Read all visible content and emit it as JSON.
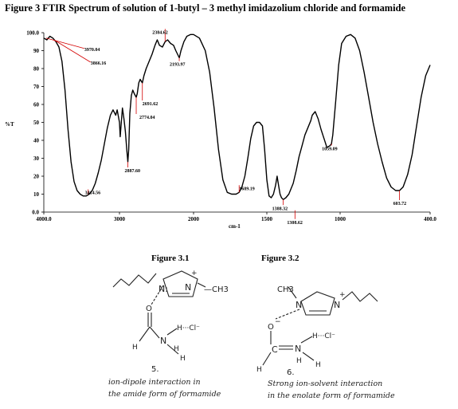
{
  "title": "Figure 3   FTIR Spectrum of solution of   1-butyl – 3 methyl imidazolium chloride and formamide",
  "chart_data": {
    "type": "line",
    "xlabel": "cm-1",
    "ylabel": "%T",
    "x_reversed": true,
    "xlim": [
      4000,
      400
    ],
    "ylim": [
      0,
      100
    ],
    "x_ticks": [
      {
        "value": 4000,
        "label": "4000.0"
      },
      {
        "value": 3000,
        "label": "3000"
      },
      {
        "value": 2000,
        "label": "2000"
      },
      {
        "value": 1500,
        "label": "1500"
      },
      {
        "value": 1000,
        "label": "1000"
      },
      {
        "value": 400,
        "label": "400.0"
      }
    ],
    "y_ticks": [
      {
        "value": 0,
        "label": "0.0"
      },
      {
        "value": 10,
        "label": "10"
      },
      {
        "value": 20,
        "label": "20"
      },
      {
        "value": 30,
        "label": "30"
      },
      {
        "value": 40,
        "label": "40"
      },
      {
        "value": 50,
        "label": "50"
      },
      {
        "value": 60,
        "label": "60"
      },
      {
        "value": 70,
        "label": "70"
      },
      {
        "value": 80,
        "label": "80"
      },
      {
        "value": 90,
        "label": "90"
      },
      {
        "value": 100,
        "label": "100.0"
      }
    ],
    "series": [
      {
        "color": "#000000",
        "points": [
          [
            4000,
            97
          ],
          [
            3960,
            96
          ],
          [
            3920,
            98
          ],
          [
            3880,
            97
          ],
          [
            3840,
            95
          ],
          [
            3800,
            92
          ],
          [
            3760,
            84
          ],
          [
            3720,
            68
          ],
          [
            3680,
            46
          ],
          [
            3640,
            28
          ],
          [
            3600,
            17
          ],
          [
            3560,
            12
          ],
          [
            3520,
            10
          ],
          [
            3480,
            9
          ],
          [
            3440,
            9
          ],
          [
            3400,
            10
          ],
          [
            3360,
            12
          ],
          [
            3320,
            16
          ],
          [
            3280,
            22
          ],
          [
            3240,
            29
          ],
          [
            3200,
            38
          ],
          [
            3160,
            47
          ],
          [
            3120,
            54
          ],
          [
            3085,
            57
          ],
          [
            3050,
            54
          ],
          [
            3030,
            57
          ],
          [
            3000,
            50
          ],
          [
            2990,
            42
          ],
          [
            2975,
            50
          ],
          [
            2960,
            58
          ],
          [
            2940,
            52
          ],
          [
            2920,
            45
          ],
          [
            2900,
            34
          ],
          [
            2887,
            28
          ],
          [
            2875,
            35
          ],
          [
            2860,
            55
          ],
          [
            2840,
            65
          ],
          [
            2820,
            68
          ],
          [
            2800,
            66
          ],
          [
            2774,
            64
          ],
          [
            2760,
            66
          ],
          [
            2740,
            72
          ],
          [
            2720,
            74
          ],
          [
            2691,
            72
          ],
          [
            2670,
            76
          ],
          [
            2640,
            80
          ],
          [
            2600,
            84
          ],
          [
            2560,
            88
          ],
          [
            2520,
            93
          ],
          [
            2490,
            96
          ],
          [
            2460,
            93
          ],
          [
            2420,
            92
          ],
          [
            2384,
            95
          ],
          [
            2350,
            96
          ],
          [
            2310,
            94
          ],
          [
            2270,
            93
          ],
          [
            2240,
            90
          ],
          [
            2193,
            86
          ],
          [
            2170,
            90
          ],
          [
            2130,
            95
          ],
          [
            2090,
            98
          ],
          [
            2040,
            99
          ],
          [
            2000,
            99
          ],
          [
            1960,
            97
          ],
          [
            1920,
            90
          ],
          [
            1890,
            78
          ],
          [
            1860,
            58
          ],
          [
            1830,
            35
          ],
          [
            1800,
            18
          ],
          [
            1770,
            11
          ],
          [
            1740,
            10
          ],
          [
            1710,
            10
          ],
          [
            1689,
            11
          ],
          [
            1670,
            14
          ],
          [
            1650,
            20
          ],
          [
            1630,
            30
          ],
          [
            1610,
            41
          ],
          [
            1590,
            48
          ],
          [
            1570,
            50
          ],
          [
            1550,
            50
          ],
          [
            1530,
            48
          ],
          [
            1515,
            35
          ],
          [
            1500,
            18
          ],
          [
            1485,
            9
          ],
          [
            1470,
            8
          ],
          [
            1455,
            10
          ],
          [
            1440,
            15
          ],
          [
            1430,
            20
          ],
          [
            1420,
            15
          ],
          [
            1410,
            10
          ],
          [
            1400,
            8
          ],
          [
            1388,
            7
          ],
          [
            1370,
            8
          ],
          [
            1350,
            10
          ],
          [
            1320,
            16
          ],
          [
            1300,
            23
          ],
          [
            1280,
            31
          ],
          [
            1260,
            37
          ],
          [
            1240,
            43
          ],
          [
            1220,
            47
          ],
          [
            1200,
            51
          ],
          [
            1190,
            54
          ],
          [
            1170,
            56
          ],
          [
            1150,
            52
          ],
          [
            1130,
            46
          ],
          [
            1110,
            41
          ],
          [
            1090,
            36
          ],
          [
            1070,
            37
          ],
          [
            1059,
            38
          ],
          [
            1050,
            43
          ],
          [
            1030,
            62
          ],
          [
            1010,
            82
          ],
          [
            990,
            94
          ],
          [
            960,
            98
          ],
          [
            930,
            99
          ],
          [
            900,
            97
          ],
          [
            870,
            90
          ],
          [
            840,
            78
          ],
          [
            810,
            64
          ],
          [
            780,
            50
          ],
          [
            750,
            38
          ],
          [
            720,
            28
          ],
          [
            690,
            19
          ],
          [
            660,
            14
          ],
          [
            630,
            12
          ],
          [
            604,
            12
          ],
          [
            580,
            14
          ],
          [
            550,
            21
          ],
          [
            520,
            32
          ],
          [
            490,
            48
          ],
          [
            460,
            64
          ],
          [
            430,
            76
          ],
          [
            400,
            82
          ]
        ]
      }
    ],
    "annotations": [
      {
        "label": "3970.04",
        "x": 3970,
        "y": 97
      },
      {
        "label": "3866.16",
        "x": 3866,
        "y": 96
      },
      {
        "label": "2384.62",
        "x": 2384,
        "y": 95
      },
      {
        "label": "2193.97",
        "x": 2193,
        "y": 86
      },
      {
        "label": "2691.62",
        "x": 2691,
        "y": 72
      },
      {
        "label": "2774.04",
        "x": 2774,
        "y": 64
      },
      {
        "label": "2887.60",
        "x": 2887,
        "y": 28
      },
      {
        "label": "3414.56",
        "x": 3414,
        "y": 10
      },
      {
        "label": "1689.19",
        "x": 1689,
        "y": 11
      },
      {
        "label": "1388.32",
        "x": 1388,
        "y": 7
      },
      {
        "label": "1308.62",
        "x": 1308,
        "y": 1
      },
      {
        "label": "1059.09",
        "x": 1059,
        "y": 38
      },
      {
        "label": "603.72",
        "x": 604,
        "y": 12
      }
    ]
  },
  "figures": {
    "fig31": {
      "caption": "Figure 3.1",
      "ring_atom_1": "N:",
      "ring_atom_2": "N",
      "plus": "+",
      "methyl": "—CH3",
      "carbonyl_o": "O",
      "amide_n": "N",
      "h1": "H",
      "h2": "H",
      "h3": "H",
      "cl": "H···Cl⁻",
      "number": "5.",
      "label_line1": "ion-dipole interaction in",
      "label_line2": "the amide form of formamide"
    },
    "fig32": {
      "caption": "Figure 3.2",
      "methyl": "CH3",
      "ring_atom_1": "N",
      "ring_atom_2": "N",
      "plus": "+",
      "o_minus": "O",
      "minus": "−",
      "amide_n": "N",
      "h1": "H",
      "h2": "H",
      "h3": "H",
      "cl": "H···Cl⁻",
      "c_atom": "C",
      "number": "6.",
      "label_line1": "Strong  ion-solvent interaction",
      "label_line2": "in the enolate form of formamide"
    }
  }
}
